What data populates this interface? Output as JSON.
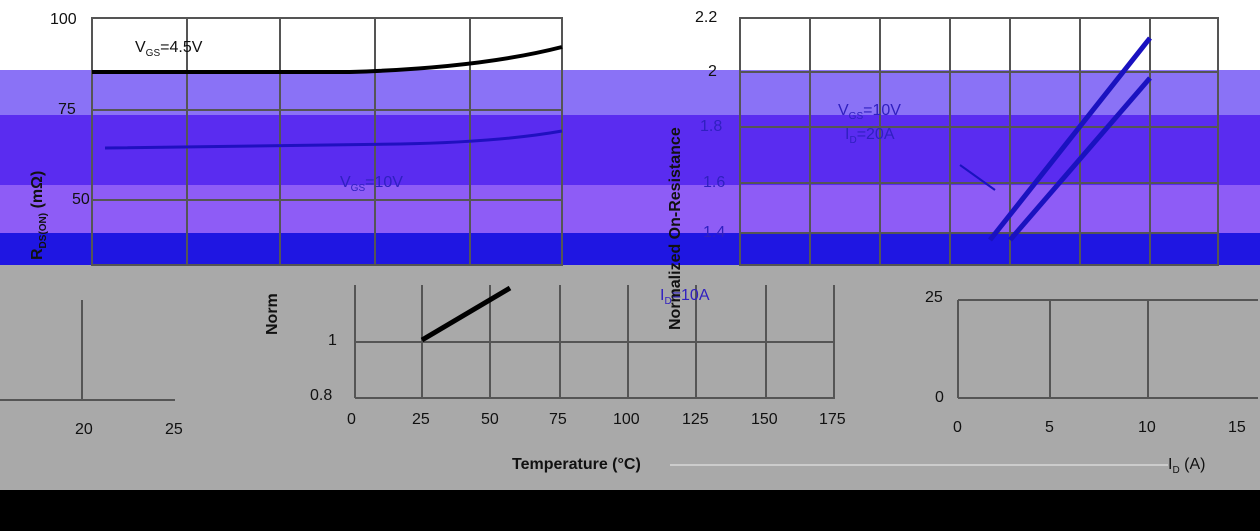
{
  "panels": {
    "top_left": {
      "y_axis_label": "R",
      "y_axis_sub": "DS(ON)",
      "y_axis_unit": "(mΩ)",
      "yticks": [
        "100",
        "75",
        "50"
      ],
      "curve_labels": [
        [
          "V",
          "GS",
          "=4.5V"
        ],
        [
          "V",
          "GS",
          "=10V"
        ]
      ]
    },
    "top_right": {
      "y_axis_label": "Normalized On-Resistance",
      "yticks": [
        "2.2",
        "2",
        "1.8",
        "1.6",
        "1.4"
      ],
      "annotation": [
        [
          "V",
          "GS",
          "=10V"
        ],
        [
          "I",
          "D",
          "=20A"
        ]
      ]
    },
    "bottom_left": {
      "xticks": [
        "20",
        "25"
      ]
    },
    "bottom_middle": {
      "y_axis_label": "Norm",
      "yticks": [
        "1",
        "0.8"
      ],
      "xticks": [
        "0",
        "25",
        "50",
        "75",
        "100",
        "125",
        "150",
        "175"
      ],
      "x_axis_label": "Temperature (°C)",
      "annotation": [
        "I",
        "D",
        "=10A"
      ]
    },
    "bottom_right": {
      "yticks": [
        "25",
        "0"
      ],
      "xticks": [
        "0",
        "5",
        "10",
        "15"
      ],
      "x_axis_label": [
        "I",
        "D",
        " (A)"
      ]
    }
  }
}
